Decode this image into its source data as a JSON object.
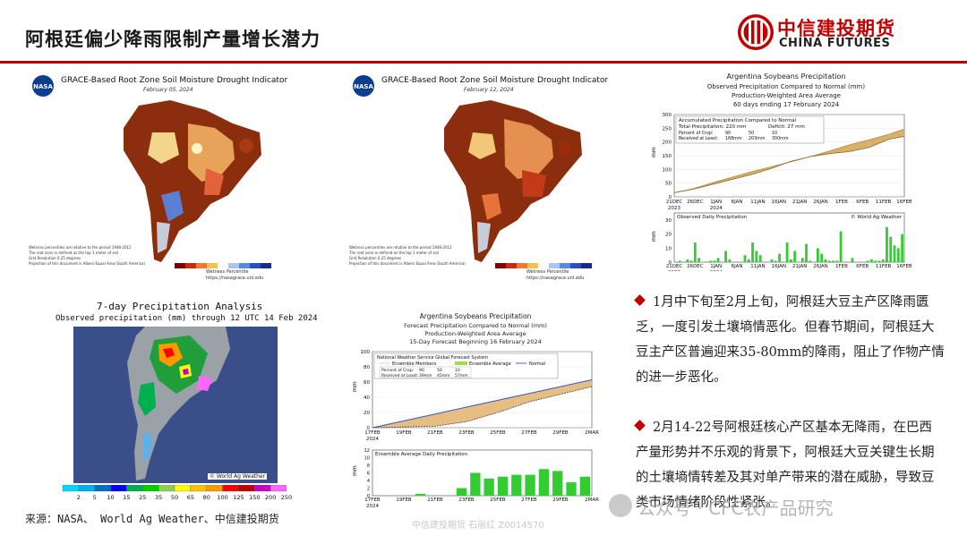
{
  "header": {
    "title": "阿根廷偏少降雨限制产量增长潜力",
    "logo_cn": "中信建投期货",
    "logo_en": "CHINA FUTURES"
  },
  "maps": {
    "grace1": {
      "title": "GRACE-Based Root Zone Soil Moisture Drought Indicator",
      "date": "February 05, 2024",
      "legend_label": "Wetness Percentile",
      "url": "https://nasagrace.unl.edu",
      "note1": "Wetness percentiles are relative to the period 1948-2012",
      "note2": "The root zone is defined as the top 1 meter of soil",
      "note3": "Grid Resolution 0.25 degrees",
      "note4": "Projection of this document is Albers Equal Area (South America)"
    },
    "grace2": {
      "title": "GRACE-Based Root Zone Soil Moisture Drought Indicator",
      "date": "February 12, 2024",
      "legend_label": "Wetness Percentile",
      "url": "https://nasagrace.unl.edu",
      "note1": "Wetness percentiles are relative to the period 1948-2012",
      "note2": "The root zone is defined as the top 1 meter of soil",
      "note3": "Grid Resolution 0.25 degrees",
      "note4": "Projection of this document is Albers Equal Area (South America)"
    },
    "precip7": {
      "title": "7-day Precipitation Analysis",
      "subtitle": "Observed precipitation (mm) through 12 UTC 14 Feb 2024",
      "credit": "© World Ag Weather",
      "legend": [
        "2",
        "5",
        "10",
        "15",
        "25",
        "35",
        "50",
        "65",
        "80",
        "100",
        "125",
        "150",
        "200",
        "250"
      ],
      "legend_colors": [
        "#00d7ff",
        "#00b0f0",
        "#0070c0",
        "#0000ff",
        "#00b050",
        "#00d000",
        "#92d050",
        "#ffff00",
        "#ffc000",
        "#ff9900",
        "#ff0000",
        "#c00000",
        "#cc00cc",
        "#ff66ff"
      ]
    }
  },
  "source_text": "来源：NASA、 World Ag Weather、中信建投期货",
  "watermark": "中信建投期货 石丽红 Z0014570",
  "wechat": "公众号 · CFC农产品研究",
  "bullets": [
    "1月中下旬至2月上旬，阿根廷大豆主产区降雨匮乏，一度引发土壤墒情恶化。但春节期间，阿根廷大豆主产区普遍迎来35-80mm的降雨，阻止了作物产情的进一步恶化。",
    "2月14-22号阿根廷核心产区基本无降雨，在巴西产量形势并不乐观的背景下，阿根廷大豆关键生长期的土壤墒情转差及其对单产带来的潜在威胁，导致豆类市场情绪阶段性紧张。"
  ],
  "chart_data": [
    {
      "type": "area",
      "title": "Argentina Soybeans Precipitation",
      "subtitle1": "Observed Precipitation Compared to Normal (mm)",
      "subtitle2": "Production-Weighted Area Average",
      "subtitle3": "60 days ending 17 February 2024",
      "box_title": "Accumulated Precipitation Compared to Normal",
      "box_total": "Total Precipitation: 220 mm",
      "box_deficit": "Deficit: 27 mm",
      "table_header": [
        "Percent of Crop:",
        "90",
        "50",
        "10"
      ],
      "table_row": [
        "Received at Least:",
        "168mm",
        "203mm",
        "300mm"
      ],
      "ylabel": "mm",
      "ylim": [
        0,
        300
      ],
      "yticks": [
        "0",
        "50",
        "100",
        "150",
        "200",
        "250",
        "300"
      ],
      "xticks": [
        "21DEC\n2023",
        "26DEC",
        "1JAN\n2024",
        "6JAN",
        "11JAN",
        "16JAN",
        "21JAN",
        "26JAN",
        "1FEB",
        "6FEB",
        "11FEB",
        "16FEB"
      ],
      "x": [
        0,
        5,
        10,
        15,
        20,
        25,
        30,
        35,
        40,
        45,
        50,
        55,
        59
      ],
      "series": [
        {
          "name": "Normal",
          "values": [
            15,
            30,
            52,
            72,
            92,
            110,
            128,
            147,
            168,
            190,
            208,
            228,
            247
          ]
        },
        {
          "name": "Observed",
          "values": [
            15,
            28,
            46,
            64,
            82,
            104,
            130,
            147,
            158,
            165,
            180,
            210,
            220
          ]
        }
      ]
    },
    {
      "type": "bar",
      "title": "Observed Daily Precipitation",
      "credit": "© World Ag Weather",
      "ylabel": "mm",
      "ylim": [
        0,
        30
      ],
      "yticks": [
        "0",
        "10",
        "20",
        "30"
      ],
      "xticks": [
        "21DEC\n2023",
        "26DEC",
        "1JAN\n2024",
        "6JAN",
        "11JAN",
        "16JAN",
        "21JAN",
        "26JAN",
        "1FEB",
        "6FEB",
        "11FEB",
        "16FEB"
      ],
      "values": [
        0,
        1,
        0,
        2,
        1,
        14,
        3,
        0,
        0,
        1,
        1,
        3,
        0,
        8,
        2,
        0,
        0,
        0,
        5,
        2,
        14,
        8,
        5,
        0,
        0,
        2,
        1,
        6,
        0,
        14,
        2,
        8,
        0,
        3,
        13,
        1,
        0,
        10,
        6,
        2,
        1,
        1,
        1,
        22,
        0,
        0,
        3,
        0,
        0,
        0,
        1,
        2,
        1,
        1,
        2,
        25,
        18,
        12,
        10,
        20
      ]
    },
    {
      "type": "area",
      "title": "Argentina Soybeans Precipitation",
      "subtitle1": "Forecast Precipitation Compared to Normal (mm)",
      "subtitle2": "Production-Weighted Area Average",
      "subtitle3": "15-Day Forecast Beginning 16 February 2024",
      "box_title": "National Weather Service Global Forecast System",
      "legend": [
        "Ensemble Members",
        "Ensemble Average",
        "Normal"
      ],
      "table_header": [
        "Percent of Crop:",
        "90",
        "50",
        "10"
      ],
      "table_row": [
        "Received at Least:",
        "39mm",
        "45mm",
        "57mm"
      ],
      "ylabel": "mm",
      "ylim": [
        0,
        100
      ],
      "yticks": [
        "0",
        "20",
        "40",
        "60",
        "80",
        "100"
      ],
      "xticks": [
        "17FEB\n2024",
        "19FEB",
        "21FEB",
        "23FEB",
        "25FEB",
        "27FEB",
        "29FEB",
        "2MAR"
      ],
      "x": [
        0,
        2,
        4,
        6,
        8,
        10,
        12,
        14
      ],
      "series": [
        {
          "name": "Normal",
          "values": [
            0,
            9,
            18,
            27,
            36,
            45,
            54,
            63
          ]
        },
        {
          "name": "Ensemble Average",
          "values": [
            0,
            1,
            2,
            8,
            20,
            34,
            44,
            54
          ]
        }
      ]
    },
    {
      "type": "bar",
      "title": "Ensemble Average Daily Precipitation",
      "ylabel": "mm",
      "ylim": [
        0,
        12
      ],
      "yticks": [
        "0",
        "2",
        "4",
        "6",
        "8",
        "10",
        "12"
      ],
      "xticks": [
        "17FEB\n2024",
        "19FEB",
        "21FEB",
        "23FEB",
        "25FEB",
        "27FEB",
        "29FEB",
        "2MAR"
      ],
      "values": [
        0,
        0,
        0,
        0.5,
        0,
        0,
        2,
        6,
        4.5,
        5,
        5.5,
        5.5,
        7,
        6.5,
        3.5,
        5
      ]
    }
  ]
}
